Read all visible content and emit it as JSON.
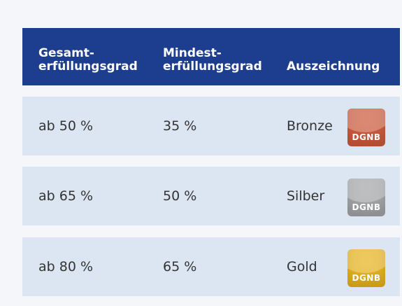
{
  "table": {
    "header": [
      "Gesamt-\nerfüllungsgrad",
      "Mindest-\nerfüllungsgrad",
      "Auszeichnung"
    ],
    "rows": [
      {
        "cells": [
          "ab 50 %",
          "35 %",
          "Bronze"
        ],
        "badge": {
          "label": "DGNB",
          "color": "#cc5a3c"
        }
      },
      {
        "cells": [
          "ab 65 %",
          "50 %",
          "Silber"
        ],
        "badge": {
          "label": "DGNB",
          "color": "#a3a5a8"
        }
      },
      {
        "cells": [
          "ab 80 %",
          "65 %",
          "Gold"
        ],
        "badge": {
          "label": "DGNB",
          "color": "#e6b31e"
        }
      }
    ]
  }
}
